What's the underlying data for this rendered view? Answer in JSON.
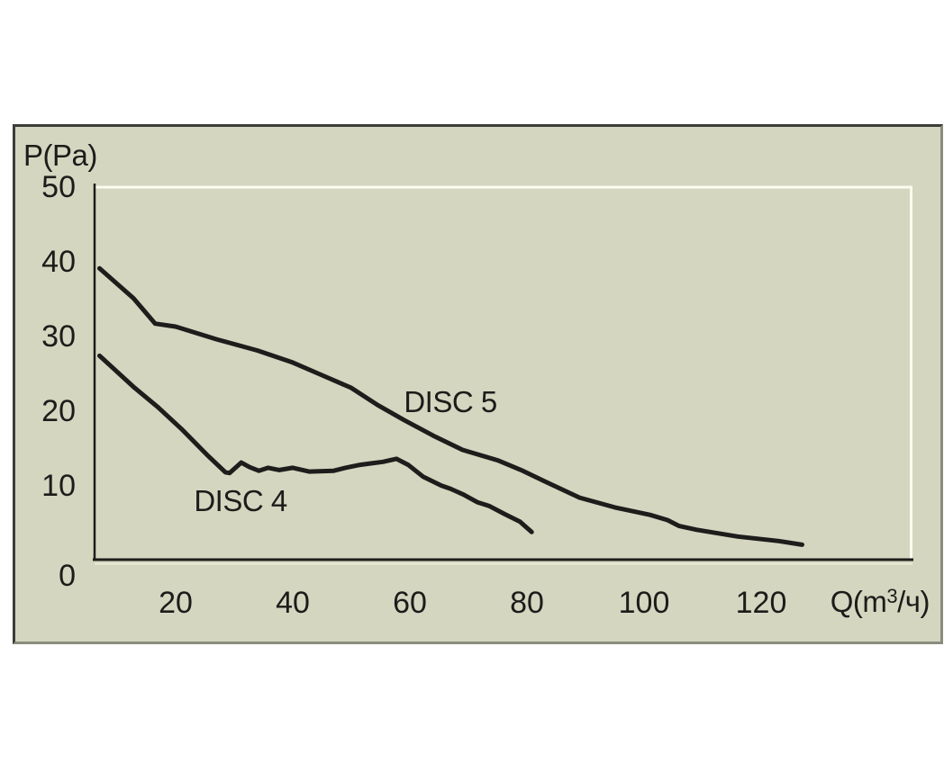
{
  "page": {
    "background": "#ffffff"
  },
  "panel": {
    "background": "#d4d6c0",
    "border_dark": "#3c3d37",
    "border_light": "#8a8c7e"
  },
  "labels": {
    "y_axis_title": "P(Pa)",
    "x_axis_title": {
      "pre": "Q(m",
      "sup": "3",
      "suf": "/ч)"
    }
  },
  "chart_data": {
    "type": "line",
    "title": "",
    "xlabel": "Q(m³/ч)",
    "ylabel": "P(Pa)",
    "xlim": [
      6,
      146
    ],
    "ylim": [
      0,
      50
    ],
    "x_ticks": [
      20,
      40,
      60,
      80,
      100,
      120
    ],
    "y_ticks": [
      50,
      40,
      30,
      20,
      10,
      0
    ],
    "grid": false,
    "legend_position": "inline-labels",
    "line_color": "#1d1d1b",
    "series": [
      {
        "name": "DISC 5",
        "points": [
          [
            7,
            39
          ],
          [
            12.8,
            35
          ],
          [
            16.5,
            31.6
          ],
          [
            20,
            31.2
          ],
          [
            27,
            29.5
          ],
          [
            34,
            28
          ],
          [
            40,
            26.4
          ],
          [
            45,
            24.7
          ],
          [
            50,
            23
          ],
          [
            54.5,
            20.7
          ],
          [
            59,
            18.7
          ],
          [
            64,
            16.6
          ],
          [
            69,
            14.7
          ],
          [
            75,
            13.3
          ],
          [
            79,
            12
          ],
          [
            83,
            10.5
          ],
          [
            89,
            8.3
          ],
          [
            95,
            7
          ],
          [
            101,
            6
          ],
          [
            104,
            5.3
          ],
          [
            106,
            4.5
          ],
          [
            109,
            4
          ],
          [
            116,
            3.1
          ],
          [
            123,
            2.5
          ],
          [
            127,
            2
          ]
        ]
      },
      {
        "name": "DISC 4",
        "points": [
          [
            7,
            27.3
          ],
          [
            13,
            23
          ],
          [
            17,
            20.4
          ],
          [
            21,
            17.5
          ],
          [
            25.4,
            14
          ],
          [
            28.5,
            11.7
          ],
          [
            29.2,
            11.6
          ],
          [
            31.2,
            13
          ],
          [
            32.6,
            12.4
          ],
          [
            34.2,
            11.9
          ],
          [
            35.8,
            12.3
          ],
          [
            37.7,
            12
          ],
          [
            40,
            12.3
          ],
          [
            42.8,
            11.8
          ],
          [
            47,
            11.9
          ],
          [
            49,
            12.3
          ],
          [
            51.5,
            12.7
          ],
          [
            53.5,
            12.9
          ],
          [
            55.4,
            13.1
          ],
          [
            57.7,
            13.5
          ],
          [
            59.7,
            12.7
          ],
          [
            62.3,
            11.1
          ],
          [
            65.4,
            9.9
          ],
          [
            66.9,
            9.5
          ],
          [
            69.2,
            8.7
          ],
          [
            71.5,
            7.7
          ],
          [
            73.5,
            7.2
          ],
          [
            76.2,
            6.1
          ],
          [
            78.8,
            5.1
          ],
          [
            80.8,
            3.7
          ]
        ]
      }
    ]
  }
}
